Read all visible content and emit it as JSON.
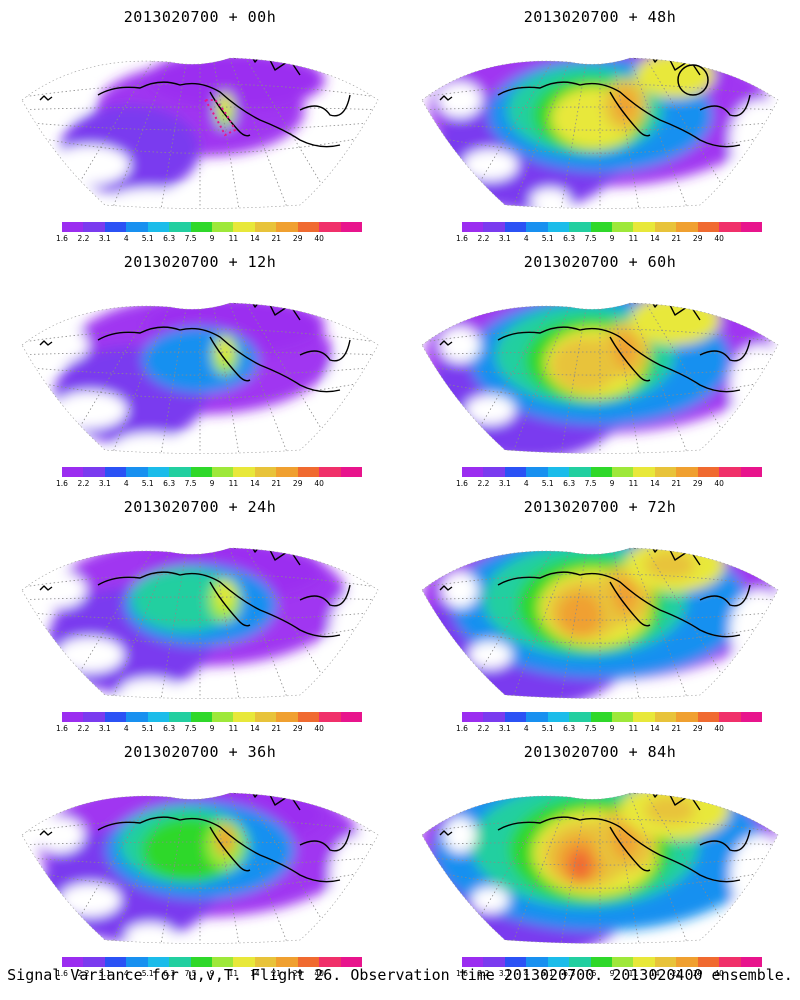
{
  "panels": [
    {
      "title": "2013020700 + 00h",
      "level": 0
    },
    {
      "title": "2013020700 + 48h",
      "level": 4
    },
    {
      "title": "2013020700 + 12h",
      "level": 1
    },
    {
      "title": "2013020700 + 60h",
      "level": 5
    },
    {
      "title": "2013020700 + 24h",
      "level": 2
    },
    {
      "title": "2013020700 + 72h",
      "level": 6
    },
    {
      "title": "2013020700 + 36h",
      "level": 3
    },
    {
      "title": "2013020700 + 84h",
      "level": 7
    }
  ],
  "colorbar": {
    "labels": [
      "1.6",
      "2.2",
      "3.1",
      "4",
      "5.1",
      "6.3",
      "7.5",
      "9",
      "11",
      "14",
      "21",
      "29",
      "40"
    ],
    "colors": [
      "#9b2df0",
      "#7a3bef",
      "#2b52f5",
      "#1890f0",
      "#1bbcea",
      "#22cfa0",
      "#2fd82a",
      "#9ee83a",
      "#e8e83a",
      "#e8c33a",
      "#f0a030",
      "#f06a30",
      "#f0306a",
      "#e8148c"
    ]
  },
  "footer": "Signal Variance for u,v,T. Flight 26. Observation time 2013020700. 2013020400 ensemble."
}
